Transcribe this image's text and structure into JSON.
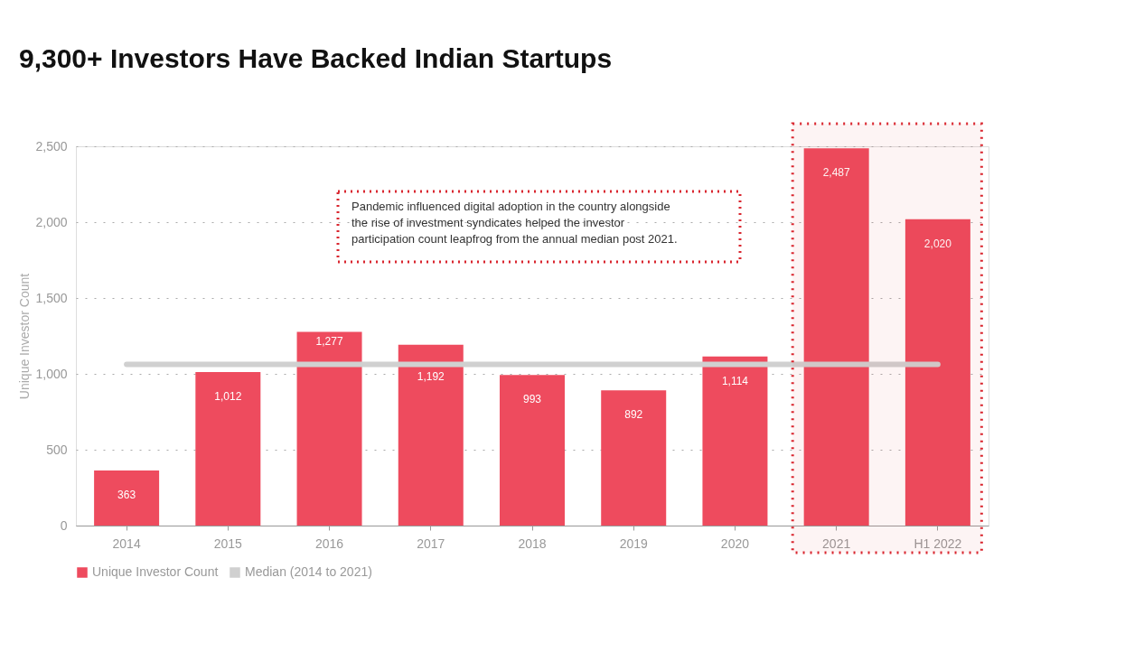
{
  "chart_data": {
    "type": "bar",
    "title": "9,300+ Investors Have Backed Indian Startups",
    "ylabel": "Unique Investor Count",
    "categories": [
      "2014",
      "2015",
      "2016",
      "2017",
      "2018",
      "2019",
      "2020",
      "2021",
      "H1 2022"
    ],
    "series": [
      {
        "name": "Unique Investor Count",
        "color": "#ee4b5e",
        "values": [
          363,
          1012,
          1277,
          1192,
          993,
          892,
          1114,
          2487,
          2020
        ],
        "value_labels": [
          "363",
          "1,012",
          "1,277",
          "1,192",
          "993",
          "892",
          "1,114",
          "2,487",
          "2,020"
        ]
      },
      {
        "name": "Median (2014 to 2021)",
        "type": "line",
        "color": "#d0d0d0",
        "values": [
          1063,
          1063,
          1063,
          1063,
          1063,
          1063,
          1063,
          1063,
          1063
        ]
      }
    ],
    "ylim": [
      0,
      2500
    ],
    "yticks": [
      0,
      {
        "value": 500,
        "label": "500"
      },
      {
        "value": 1000,
        "label": "1,000"
      },
      {
        "value": 1500,
        "label": "1,500"
      },
      {
        "value": 2000,
        "label": "2,000"
      },
      {
        "value": 2500,
        "label": "2,500"
      }
    ],
    "grid": "y",
    "legend": "bottom",
    "bands": [
      {
        "axis": "x",
        "from": "2021",
        "to": "H1 2022",
        "color": "#d9262f"
      }
    ],
    "annotations": [
      "Pandemic influenced digital adoption in the country alongside the rise of investment syndicates helped the investor participation count leapfrog from the annual median post 2021."
    ]
  }
}
